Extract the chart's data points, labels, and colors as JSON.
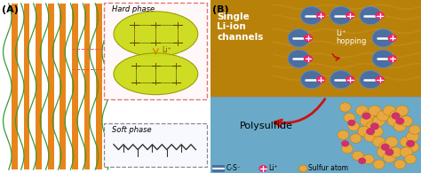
{
  "fig_width": 4.74,
  "fig_height": 1.95,
  "dpi": 100,
  "panel_A": {
    "orange_color": "#E8851A",
    "green_color": "#3A9A3A",
    "hard_phase_label": "Hard phase",
    "soft_phase_label": "Soft phase",
    "li_label": "Li⁺"
  },
  "panel_B": {
    "top_bg": "#B8820A",
    "bottom_bg": "#6AAAC8",
    "blue_circle_color": "#4A6FA0",
    "plus_color": "#EE2266",
    "arrow_color": "#CC1111",
    "sulfur_color": "#E8A840",
    "pink_color": "#CC3366",
    "legend_cs_label": "C-S⁻",
    "legend_li_label": "Li⁺",
    "legend_s_label": "Sulfur atom",
    "wave_color": "#C89830",
    "single_text": "Single\nLi-ion\nchannels",
    "hopping_text": "Li⁺\nhopping",
    "polysulfide_text": "Polysulfide"
  }
}
